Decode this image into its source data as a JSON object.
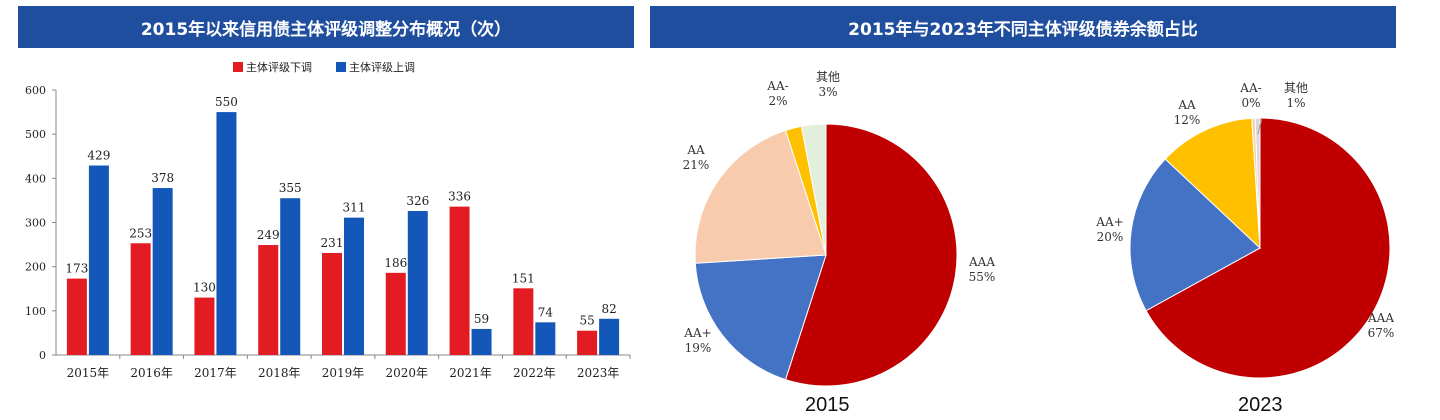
{
  "panels": {
    "left_title": "2015年以来信用债主体评级调整分布概况（次）",
    "right_title": "2015年与2023年不同主体评级债券余额占比"
  },
  "colors": {
    "banner": "#1f4e9e",
    "down": "#e31c23",
    "up": "#1358b8"
  },
  "chart_data": [
    {
      "type": "bar",
      "categories": [
        "2015年",
        "2016年",
        "2017年",
        "2018年",
        "2019年",
        "2020年",
        "2021年",
        "2022年",
        "2023年"
      ],
      "series": [
        {
          "name": "主体评级下调",
          "color": "#e31c23",
          "values": [
            173,
            253,
            130,
            249,
            231,
            186,
            336,
            151,
            55
          ]
        },
        {
          "name": "主体评级上调",
          "color": "#1358b8",
          "values": [
            429,
            378,
            550,
            355,
            311,
            326,
            59,
            74,
            82
          ]
        }
      ],
      "ylim": [
        0,
        600
      ],
      "yticks": [
        0,
        100,
        200,
        300,
        400,
        500,
        600
      ],
      "legend": "top-center",
      "grid": false
    },
    {
      "type": "pie",
      "caption": "2015",
      "slices": [
        {
          "label": "AAA",
          "value": 55,
          "text": "55%",
          "color": "#c00000"
        },
        {
          "label": "AA+",
          "value": 19,
          "text": "19%",
          "color": "#4472c4"
        },
        {
          "label": "AA",
          "value": 21,
          "text": "21%",
          "color": "#f8cbad"
        },
        {
          "label": "AA-",
          "value": 2,
          "text": "2%",
          "color": "#ffc000"
        },
        {
          "label": "其他",
          "value": 3,
          "text": "3%",
          "color": "#e2efda"
        }
      ]
    },
    {
      "type": "pie",
      "caption": "2023",
      "slices": [
        {
          "label": "AAA",
          "value": 67,
          "text": "67%",
          "color": "#c00000"
        },
        {
          "label": "AA+",
          "value": 20,
          "text": "20%",
          "color": "#4472c4"
        },
        {
          "label": "AA",
          "value": 12,
          "text": "12%",
          "color": "#ffc000"
        },
        {
          "label": "AA-",
          "value": 0.4,
          "text": "0%",
          "color": "#f8cbad"
        },
        {
          "label": "其他",
          "value": 0.6,
          "text": "1%",
          "color": "#d9d9d9"
        }
      ]
    }
  ]
}
